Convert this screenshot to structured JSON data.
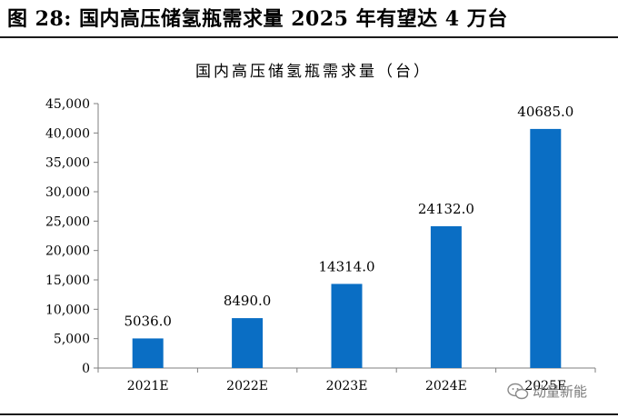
{
  "figure_label": "图 28:  国内高压储氢瓶需求量 2025 年有望达 4 万台",
  "watermark_text": "动量新能",
  "watermark_icon": "wechat-icon",
  "colors": {
    "bar": "#0a6ec4",
    "axis": "#7f7f7f",
    "text": "#000000"
  },
  "chart_data": {
    "type": "bar",
    "title": "国内高压储氢瓶需求量（台）",
    "xlabel": "",
    "ylabel": "",
    "categories": [
      "2021E",
      "2022E",
      "2023E",
      "2024E",
      "2025E"
    ],
    "values": [
      5036.0,
      8490.0,
      14314.0,
      24132.0,
      40685.0
    ],
    "data_labels": [
      "5036.0",
      "8490.0",
      "14314.0",
      "24132.0",
      "40685.0"
    ],
    "ylim": [
      0,
      45000
    ],
    "yticks": [
      0,
      5000,
      10000,
      15000,
      20000,
      25000,
      30000,
      35000,
      40000,
      45000
    ],
    "ytick_labels": [
      "0",
      "5,000",
      "10,000",
      "15,000",
      "20,000",
      "25,000",
      "30,000",
      "35,000",
      "40,000",
      "45,000"
    ],
    "grid": false,
    "legend": "none"
  }
}
